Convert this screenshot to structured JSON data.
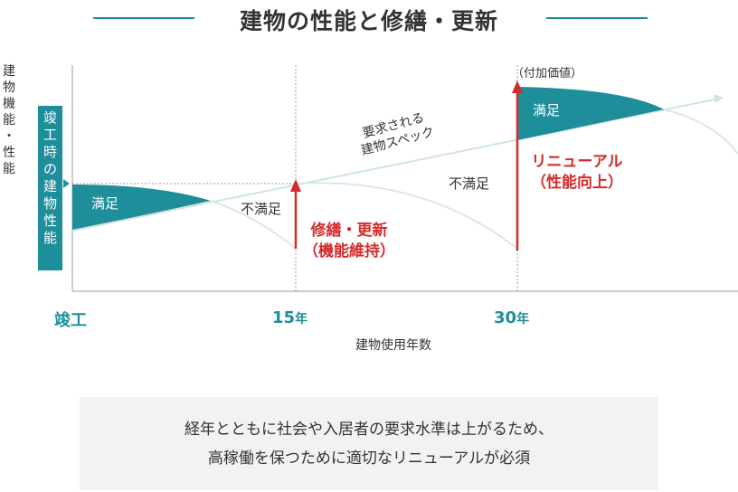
{
  "title": "建物の性能と修繕・更新",
  "y_axis_label": [
    "建",
    "物",
    "機",
    "能",
    "・",
    "性",
    "能"
  ],
  "badge": [
    "竣",
    "工",
    "時",
    "の",
    "建",
    "物",
    "性",
    "能"
  ],
  "x_ticks": [
    {
      "value": "竣工",
      "unit": ""
    },
    {
      "value": "15",
      "unit": "年"
    },
    {
      "value": "30",
      "unit": "年"
    }
  ],
  "x_axis_title": "建物使用年数",
  "labels": {
    "satisfied_1": "満足",
    "unsatisfied_1": "不満足",
    "unsatisfied_2": "不満足",
    "satisfied_2": "満足",
    "required_spec": [
      "要求される",
      "建物スペック"
    ],
    "repair": [
      "修繕・更新",
      "（機能維持）"
    ],
    "renewal": [
      "リニューアル",
      "（性能向上）"
    ],
    "added_value": "（付加価値）"
  },
  "colors": {
    "teal": "#1e8e9b",
    "red": "#d42b2b",
    "spec_line": "#cfe3e6",
    "curve": "#d8e8ea",
    "axis": "#bbbbbb"
  },
  "note": [
    "経年とともに社会や入居者の要求水準は上がるため、",
    "高稼働を保つために適切なリニューアルが必須"
  ]
}
